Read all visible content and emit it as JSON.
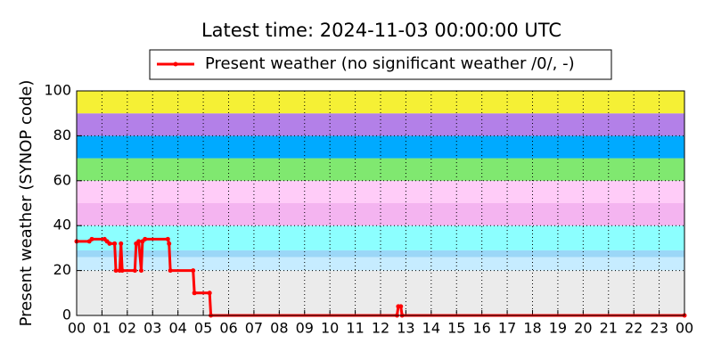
{
  "chart_data": {
    "type": "line",
    "title": "Latest time: 2024-11-03 00:00:00 UTC",
    "ylabel": "Present weather (SYNOP code)",
    "xlim": [
      0,
      24
    ],
    "ylim": [
      0,
      100
    ],
    "yticks": [
      0,
      20,
      40,
      60,
      80,
      100
    ],
    "xticks": [
      {
        "value": 0,
        "label": "00"
      },
      {
        "value": 1,
        "label": "01"
      },
      {
        "value": 2,
        "label": "02"
      },
      {
        "value": 3,
        "label": "03"
      },
      {
        "value": 4,
        "label": "04"
      },
      {
        "value": 5,
        "label": "05"
      },
      {
        "value": 6,
        "label": "06"
      },
      {
        "value": 7,
        "label": "07"
      },
      {
        "value": 8,
        "label": "08"
      },
      {
        "value": 9,
        "label": "09"
      },
      {
        "value": 10,
        "label": "10"
      },
      {
        "value": 11,
        "label": "11"
      },
      {
        "value": 12,
        "label": "12"
      },
      {
        "value": 13,
        "label": "13"
      },
      {
        "value": 14,
        "label": "14"
      },
      {
        "value": 15,
        "label": "15"
      },
      {
        "value": 16,
        "label": "16"
      },
      {
        "value": 17,
        "label": "17"
      },
      {
        "value": 18,
        "label": "18"
      },
      {
        "value": 19,
        "label": "19"
      },
      {
        "value": 20,
        "label": "20"
      },
      {
        "value": 21,
        "label": "21"
      },
      {
        "value": 22,
        "label": "22"
      },
      {
        "value": 23,
        "label": "23"
      },
      {
        "value": 24,
        "label": "00"
      }
    ],
    "grid": true,
    "legend": "top",
    "bands": [
      {
        "from": 0,
        "to": 20,
        "color": "#ebebeb"
      },
      {
        "from": 20,
        "to": 26,
        "color": "#c6ecff"
      },
      {
        "from": 26,
        "to": 29,
        "color": "#9bd7f7"
      },
      {
        "from": 29,
        "to": 40,
        "color": "#8cffff"
      },
      {
        "from": 40,
        "to": 50,
        "color": "#f4b4f0"
      },
      {
        "from": 50,
        "to": 60,
        "color": "#ffccf8"
      },
      {
        "from": 60,
        "to": 70,
        "color": "#80e870"
      },
      {
        "from": 70,
        "to": 80,
        "color": "#00aaff"
      },
      {
        "from": 80,
        "to": 90,
        "color": "#b380e8"
      },
      {
        "from": 90,
        "to": 100,
        "color": "#f5f035"
      }
    ],
    "x": [
      0,
      0.5,
      0.6,
      1.1,
      1.2,
      1.3,
      1.5,
      1.55,
      1.7,
      1.75,
      1.8,
      2.3,
      2.35,
      2.45,
      2.55,
      2.6,
      2.7,
      3.6,
      3.65,
      3.7,
      4.6,
      4.65,
      5.25,
      5.3,
      12.65,
      12.7,
      12.8,
      12.85,
      24
    ],
    "series": [
      {
        "name": "Present weather (no significant weather /0/, -)",
        "color": "#ff0000",
        "values": [
          33,
          33,
          34,
          34,
          33,
          32,
          32,
          20,
          20,
          32,
          20,
          20,
          32,
          33,
          20,
          33,
          34,
          34,
          32,
          20,
          20,
          10,
          10,
          0,
          0,
          4,
          4,
          0,
          0
        ]
      }
    ]
  }
}
